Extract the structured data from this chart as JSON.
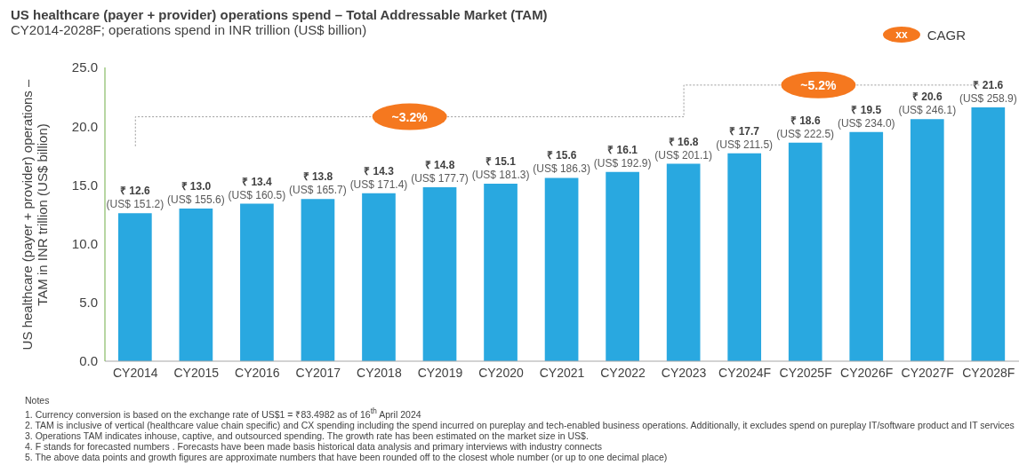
{
  "chart_data": {
    "type": "bar",
    "title": "US healthcare (payer + provider) operations spend – Total Addressable Market (TAM)",
    "subtitle": "CY2014-2028F; operations spend in INR trillion (US$ billion)",
    "ylabel": "US healthcare (payer + provider) operations – TAM in INR trillion (US$ billion)",
    "categories": [
      "CY2014",
      "CY2015",
      "CY2016",
      "CY2017",
      "CY2018",
      "CY2019",
      "CY2020",
      "CY2021",
      "CY2022",
      "CY2023",
      "CY2024F",
      "CY2025F",
      "CY2026F",
      "CY2027F",
      "CY2028F"
    ],
    "values": [
      12.6,
      13.0,
      13.4,
      13.8,
      14.3,
      14.8,
      15.1,
      15.6,
      16.1,
      16.8,
      17.7,
      18.6,
      19.5,
      20.6,
      21.6
    ],
    "value_labels": [
      "₹ 12.6\n(US$ 151.2)",
      "₹ 13.0\n(US$ 155.6)",
      "₹ 13.4\n(US$ 160.5)",
      "₹ 13.8\n(US$ 165.7)",
      "₹ 14.3\n(US$ 171.4)",
      "₹ 14.8\n(US$ 177.7)",
      "₹ 15.1\n(US$ 181.3)",
      "₹ 15.6\n(US$ 186.3)",
      "₹ 16.1\n(US$ 192.9)",
      "₹ 16.8\n(US$ 201.1)",
      "₹ 17.7\n(US$ 211.5)",
      "₹ 18.6\n(US$ 222.5)",
      "₹ 19.5\n(US$ 234.0)",
      "₹ 20.6\n(US$ 246.1)",
      "₹ 21.6\n(US$ 258.9)"
    ],
    "color": "#29a8e0",
    "ylim": [
      0,
      25
    ],
    "yticks": [
      {
        "value": 0,
        "label": "0.0"
      },
      {
        "value": 5,
        "label": "5.0"
      },
      {
        "value": 10,
        "label": "10.0"
      },
      {
        "value": 15,
        "label": "15.0"
      },
      {
        "value": 20,
        "label": "20.0"
      },
      {
        "value": 25,
        "label": "25.0"
      }
    ],
    "grid": false,
    "annotations": [
      "~3.2%",
      "~5.2%",
      "xx",
      "CAGR",
      "Notes",
      "1. Currency conversion is based on the exchange rate of US$1 = ₹83.4982 as of 16$^{th}$ April 2024",
      "2. TAM is inclusive of vertical (healthcare value chain specific) and CX spending including the spend incurred on pureplay and tech-enabled business operations. Additionally, it excludes spend on pureplay IT/software product and IT services",
      "3. Operations TAM indicates inhouse, captive, and outsourced spending. The growth rate has been estimated on the market size in US$.",
      "4. F stands for forecasted numbers . Forecasts have been made basis historical data analysis and primary interviews with industry connects",
      "5. The above data points and growth figures are approximate numbers that have been rounded off to the closest whole number (or up to one decimal place)"
    ]
  }
}
